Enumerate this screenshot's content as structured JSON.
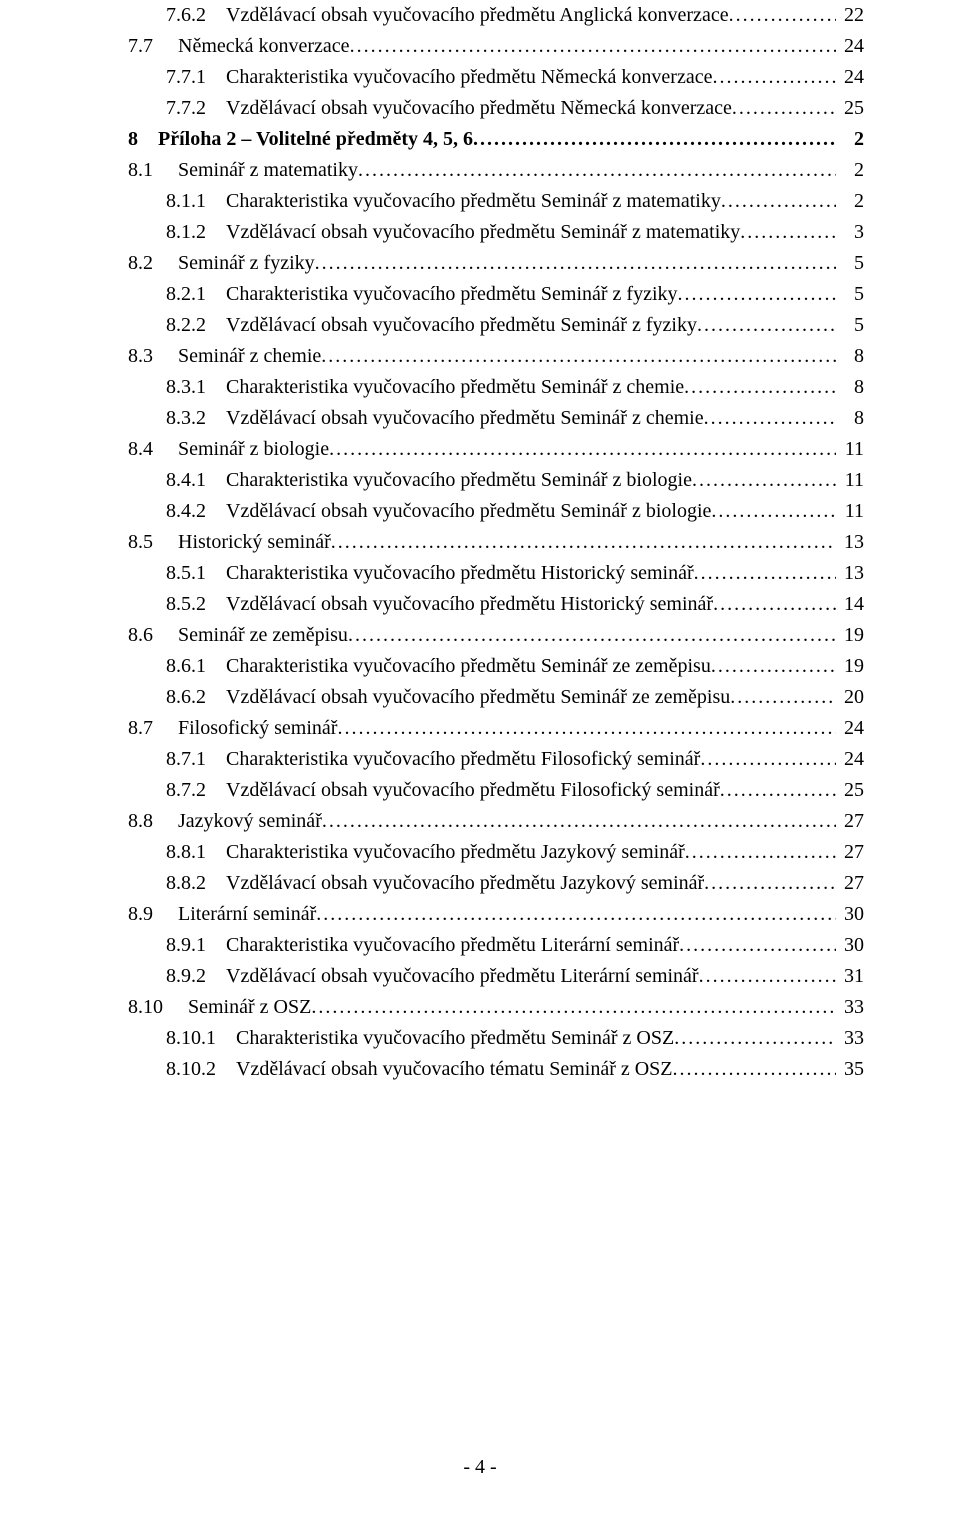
{
  "toc": [
    {
      "indent": 3,
      "bold": false,
      "num": "7.6.2",
      "title": "Vzdělávací obsah vyučovacího předmětu Anglická konverzace",
      "page": "22"
    },
    {
      "indent": 2,
      "bold": false,
      "num": "7.7",
      "title": "Německá konverzace",
      "page": "24"
    },
    {
      "indent": 3,
      "bold": false,
      "num": "7.7.1",
      "title": "Charakteristika vyučovacího předmětu Německá konverzace",
      "page": "24"
    },
    {
      "indent": 3,
      "bold": false,
      "num": "7.7.2",
      "title": "Vzdělávací obsah vyučovacího předmětu Německá konverzace",
      "page": "25"
    },
    {
      "indent": 1,
      "bold": true,
      "num": "8",
      "title": "Příloha 2 – Volitelné předměty 4, 5, 6",
      "page": "2"
    },
    {
      "indent": 2,
      "bold": false,
      "num": "8.1",
      "title": "Seminář z matematiky",
      "page": "2"
    },
    {
      "indent": 3,
      "bold": false,
      "num": "8.1.1",
      "title": "Charakteristika vyučovacího předmětu Seminář z matematiky",
      "page": "2"
    },
    {
      "indent": 3,
      "bold": false,
      "num": "8.1.2",
      "title": "Vzdělávací obsah vyučovacího předmětu Seminář z matematiky",
      "page": "3"
    },
    {
      "indent": 2,
      "bold": false,
      "num": "8.2",
      "title": "Seminář z fyziky",
      "page": "5"
    },
    {
      "indent": 3,
      "bold": false,
      "num": "8.2.1",
      "title": "Charakteristika vyučovacího předmětu Seminář z fyziky",
      "page": "5"
    },
    {
      "indent": 3,
      "bold": false,
      "num": "8.2.2",
      "title": "Vzdělávací obsah vyučovacího předmětu Seminář z fyziky",
      "page": "5"
    },
    {
      "indent": 2,
      "bold": false,
      "num": "8.3",
      "title": "Seminář z chemie",
      "page": "8"
    },
    {
      "indent": 3,
      "bold": false,
      "num": "8.3.1",
      "title": "Charakteristika vyučovacího předmětu Seminář z chemie",
      "page": "8"
    },
    {
      "indent": 3,
      "bold": false,
      "num": "8.3.2",
      "title": "Vzdělávací obsah vyučovacího předmětu Seminář z chemie",
      "page": "8"
    },
    {
      "indent": 2,
      "bold": false,
      "num": "8.4",
      "title": "Seminář z biologie",
      "page": "11"
    },
    {
      "indent": 3,
      "bold": false,
      "num": "8.4.1",
      "title": "Charakteristika vyučovacího předmětu Seminář z biologie",
      "page": "11"
    },
    {
      "indent": 3,
      "bold": false,
      "num": "8.4.2",
      "title": "Vzdělávací obsah vyučovacího předmětu Seminář z biologie",
      "page": "11"
    },
    {
      "indent": 2,
      "bold": false,
      "num": "8.5",
      "title": "Historický seminář",
      "page": "13"
    },
    {
      "indent": 3,
      "bold": false,
      "num": "8.5.1",
      "title": "Charakteristika vyučovacího předmětu Historický seminář",
      "page": "13"
    },
    {
      "indent": 3,
      "bold": false,
      "num": "8.5.2",
      "title": "Vzdělávací obsah vyučovacího předmětu Historický seminář",
      "page": "14"
    },
    {
      "indent": 2,
      "bold": false,
      "num": "8.6",
      "title": "Seminář ze zeměpisu",
      "page": "19"
    },
    {
      "indent": 3,
      "bold": false,
      "num": "8.6.1",
      "title": "Charakteristika vyučovacího předmětu Seminář ze zeměpisu",
      "page": "19"
    },
    {
      "indent": 3,
      "bold": false,
      "num": "8.6.2",
      "title": "Vzdělávací obsah vyučovacího předmětu Seminář ze zeměpisu",
      "page": "20"
    },
    {
      "indent": 2,
      "bold": false,
      "num": "8.7",
      "title": "Filosofický seminář",
      "page": "24"
    },
    {
      "indent": 3,
      "bold": false,
      "num": "8.7.1",
      "title": "Charakteristika vyučovacího předmětu Filosofický seminář",
      "page": "24"
    },
    {
      "indent": 3,
      "bold": false,
      "num": "8.7.2",
      "title": "Vzdělávací obsah vyučovacího předmětu Filosofický seminář",
      "page": "25"
    },
    {
      "indent": 2,
      "bold": false,
      "num": "8.8",
      "title": "Jazykový seminář",
      "page": "27"
    },
    {
      "indent": 3,
      "bold": false,
      "num": "8.8.1",
      "title": "Charakteristika vyučovacího předmětu Jazykový seminář",
      "page": "27"
    },
    {
      "indent": 3,
      "bold": false,
      "num": "8.8.2",
      "title": "Vzdělávací obsah vyučovacího předmětu Jazykový seminář",
      "page": "27"
    },
    {
      "indent": 2,
      "bold": false,
      "num": "8.9",
      "title": "Literární seminář",
      "page": "30"
    },
    {
      "indent": 3,
      "bold": false,
      "num": "8.9.1",
      "title": "Charakteristika vyučovacího předmětu Literární seminář",
      "page": "30"
    },
    {
      "indent": 3,
      "bold": false,
      "num": "8.9.2",
      "title": "Vzdělávací obsah vyučovacího předmětu Literární seminář",
      "page": "31"
    },
    {
      "indent": 2,
      "bold": false,
      "num": "8.10",
      "title": "Seminář z OSZ",
      "page": "33"
    },
    {
      "indent": 3,
      "bold": false,
      "num": "8.10.1",
      "title": "Charakteristika vyučovacího předmětu Seminář z OSZ",
      "page": "33"
    },
    {
      "indent": 3,
      "bold": false,
      "num": "8.10.2",
      "title": "Vzdělávací obsah vyučovacího tématu Seminář z OSZ",
      "page": "35"
    }
  ],
  "footer": "- 4 -"
}
